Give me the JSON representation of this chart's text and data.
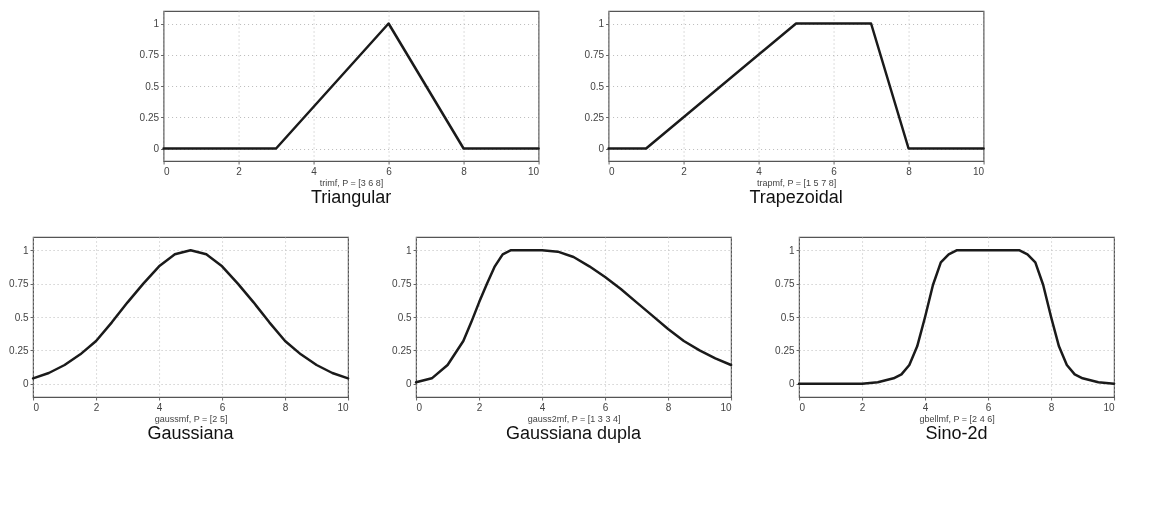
{
  "chart_data": [
    {
      "type": "line",
      "title": "Triangular",
      "xlabel": "trimf, P = [3 6 8]",
      "x": [
        0,
        3,
        6,
        8,
        10
      ],
      "series": [
        {
          "color": "#1a1a1a",
          "values": [
            0,
            0,
            1,
            0,
            0
          ]
        }
      ],
      "xlim": [
        0,
        10
      ],
      "xticks": [
        0,
        2,
        4,
        6,
        8,
        10
      ],
      "ylim": [
        -0.1,
        1.1
      ],
      "yticks": [
        0,
        0.25,
        0.5,
        0.75,
        1
      ],
      "grid": true
    },
    {
      "type": "line",
      "title": "Trapezoidal",
      "xlabel": "trapmf, P = [1 5 7 8]",
      "x": [
        0,
        1,
        5,
        7,
        8,
        10
      ],
      "series": [
        {
          "color": "#1a1a1a",
          "values": [
            0,
            0,
            1,
            1,
            0,
            0
          ]
        }
      ],
      "xlim": [
        0,
        10
      ],
      "xticks": [
        0,
        2,
        4,
        6,
        8,
        10
      ],
      "ylim": [
        -0.1,
        1.1
      ],
      "yticks": [
        0,
        0.25,
        0.5,
        0.75,
        1
      ],
      "grid": true
    },
    {
      "type": "line",
      "title": "Gaussiana",
      "xlabel": "gaussmf, P = [2 5]",
      "x": [
        0,
        0.5,
        1,
        1.5,
        2,
        2.5,
        3,
        3.5,
        4,
        4.5,
        5,
        5.5,
        6,
        6.5,
        7,
        7.5,
        8,
        8.5,
        9,
        9.5,
        10
      ],
      "series": [
        {
          "color": "#1a1a1a",
          "values": [
            0.04,
            0.08,
            0.14,
            0.22,
            0.32,
            0.46,
            0.61,
            0.75,
            0.88,
            0.97,
            1,
            0.97,
            0.88,
            0.75,
            0.61,
            0.46,
            0.32,
            0.22,
            0.14,
            0.08,
            0.04
          ]
        }
      ],
      "xlim": [
        0,
        10
      ],
      "xticks": [
        0,
        2,
        4,
        6,
        8,
        10
      ],
      "ylim": [
        -0.1,
        1.1
      ],
      "yticks": [
        0,
        0.25,
        0.5,
        0.75,
        1
      ],
      "grid": true
    },
    {
      "type": "line",
      "title": "Gaussiana dupla",
      "xlabel": "gauss2mf, P = [1 3 3 4]",
      "x": [
        0,
        0.5,
        1,
        1.5,
        1.75,
        2,
        2.25,
        2.5,
        2.75,
        3,
        3.5,
        4,
        4.5,
        5,
        5.5,
        6,
        6.5,
        7,
        7.5,
        8,
        8.5,
        9,
        9.5,
        10
      ],
      "series": [
        {
          "color": "#1a1a1a",
          "values": [
            0.01,
            0.04,
            0.14,
            0.32,
            0.46,
            0.61,
            0.75,
            0.88,
            0.97,
            1,
            1,
            1,
            0.99,
            0.95,
            0.88,
            0.8,
            0.71,
            0.61,
            0.51,
            0.41,
            0.32,
            0.25,
            0.19,
            0.14
          ]
        }
      ],
      "xlim": [
        0,
        10
      ],
      "xticks": [
        0,
        2,
        4,
        6,
        8,
        10
      ],
      "ylim": [
        -0.1,
        1.1
      ],
      "yticks": [
        0,
        0.25,
        0.5,
        0.75,
        1
      ],
      "grid": true
    },
    {
      "type": "line",
      "title": "Sino-2d",
      "xlabel": "gbellmf, P = [2 4 6]",
      "x": [
        0,
        1,
        2,
        2.5,
        3,
        3.25,
        3.5,
        3.75,
        4,
        4.25,
        4.5,
        4.75,
        5,
        5.5,
        6,
        6.5,
        7,
        7.25,
        7.5,
        7.75,
        8,
        8.25,
        8.5,
        8.75,
        9,
        9.5,
        10
      ],
      "series": [
        {
          "color": "#1a1a1a",
          "values": [
            0,
            0,
            0,
            0.01,
            0.04,
            0.07,
            0.14,
            0.28,
            0.5,
            0.74,
            0.91,
            0.97,
            1,
            1,
            1,
            1,
            1,
            0.97,
            0.91,
            0.74,
            0.5,
            0.28,
            0.14,
            0.07,
            0.04,
            0.01,
            0
          ]
        }
      ],
      "xlim": [
        0,
        10
      ],
      "xticks": [
        0,
        2,
        4,
        6,
        8,
        10
      ],
      "ylim": [
        -0.1,
        1.1
      ],
      "yticks": [
        0,
        0.25,
        0.5,
        0.75,
        1
      ],
      "grid": true
    }
  ]
}
